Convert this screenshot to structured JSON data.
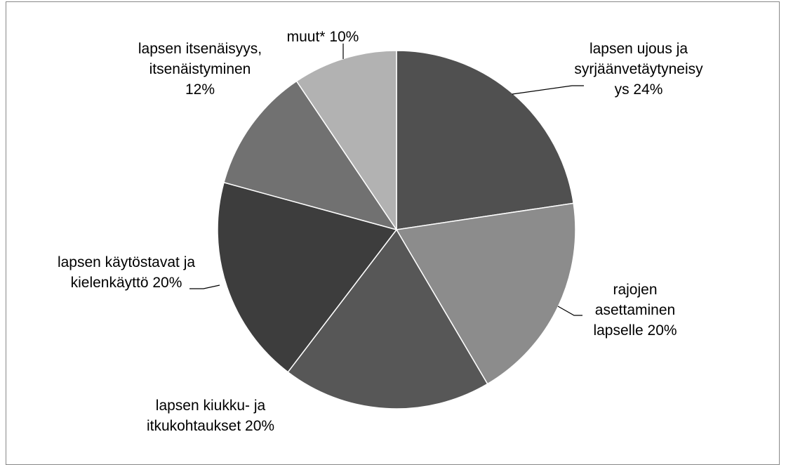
{
  "chart_data": {
    "type": "pie",
    "categories": [
      "lapsen ujous ja syrjäänvetäytyneisyys",
      "rajojen asettaminen lapselle",
      "lapsen kiukku- ja itkukohtaukset",
      "lapsen käytöstavat ja kielenkäyttö",
      "lapsen itsenäisyys, itsenäistyminen",
      "muut*"
    ],
    "values": [
      24,
      20,
      20,
      20,
      12,
      10
    ],
    "value_labels": [
      "24%",
      "20%",
      "20%",
      "20%",
      "12%",
      "10%"
    ],
    "colors": [
      "#505050",
      "#8c8c8c",
      "#575757",
      "#3d3d3d",
      "#717171",
      "#b2b2b2"
    ]
  }
}
